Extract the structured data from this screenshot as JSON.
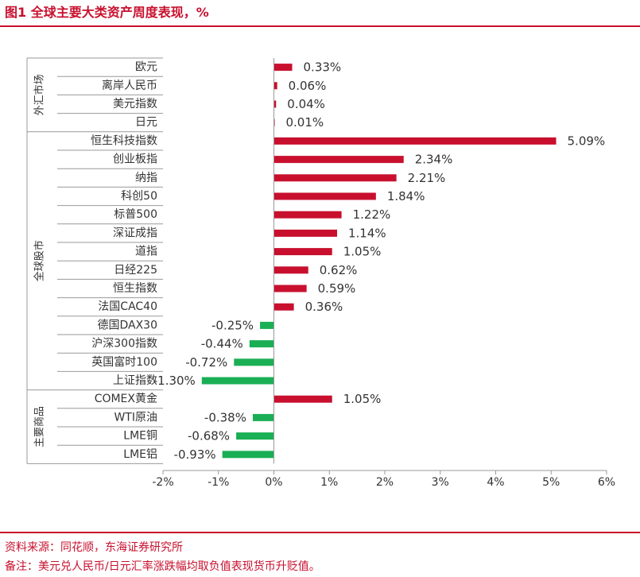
{
  "figure": {
    "title": "图1  全球主要大类资产周度表现，%",
    "source": "资料来源：同花顺，东海证券研究所",
    "note": "备注：美元兑人民币/日元汇率涨跌幅均取负值表现货币升贬值。"
  },
  "colors": {
    "positive": "#c8102e",
    "negative": "#1aaf54",
    "axis": "#999999",
    "text": "#333333",
    "accent": "#c8102e"
  },
  "chart_data": {
    "type": "bar",
    "orientation": "horizontal",
    "unit": "%",
    "groups": [
      {
        "name": "外汇市场",
        "categories": [
          "欧元",
          "离岸人民币",
          "美元指数",
          "日元"
        ]
      },
      {
        "name": "全球股市",
        "categories": [
          "恒生科技指数",
          "创业板指",
          "纳指",
          "科创50",
          "标普500",
          "深证成指",
          "道指",
          "日经225",
          "恒生指数",
          "法国CAC40",
          "德国DAX30",
          "沪深300指数",
          "英国富时100",
          "上证指数"
        ]
      },
      {
        "name": "主要商品",
        "categories": [
          "COMEX黄金",
          "WTI原油",
          "LME铜",
          "LME铝"
        ]
      }
    ],
    "categories": [
      "欧元",
      "离岸人民币",
      "美元指数",
      "日元",
      "恒生科技指数",
      "创业板指",
      "纳指",
      "科创50",
      "标普500",
      "深证成指",
      "道指",
      "日经225",
      "恒生指数",
      "法国CAC40",
      "德国DAX30",
      "沪深300指数",
      "英国富时100",
      "上证指数",
      "COMEX黄金",
      "WTI原油",
      "LME铜",
      "LME铝"
    ],
    "values": [
      0.33,
      0.06,
      0.04,
      0.01,
      5.09,
      2.34,
      2.21,
      1.84,
      1.22,
      1.14,
      1.05,
      0.62,
      0.59,
      0.36,
      -0.25,
      -0.44,
      -0.72,
      -1.3,
      1.05,
      -0.38,
      -0.68,
      -0.93
    ],
    "data_labels": [
      "0.33%",
      "0.06%",
      "0.04%",
      "0.01%",
      "5.09%",
      "2.34%",
      "2.21%",
      "1.84%",
      "1.22%",
      "1.14%",
      "1.05%",
      "0.62%",
      "0.59%",
      "0.36%",
      "-0.25%",
      "-0.44%",
      "-0.72%",
      "-1.30%",
      "1.05%",
      "-0.38%",
      "-0.68%",
      "-0.93%"
    ],
    "xlim": [
      -2,
      6
    ],
    "xticks": [
      -2,
      -1,
      0,
      1,
      2,
      3,
      4,
      5,
      6
    ],
    "xtick_labels": [
      "-2%",
      "-1%",
      "0%",
      "1%",
      "2%",
      "3%",
      "4%",
      "5%",
      "6%"
    ],
    "grid": false,
    "legend": "none"
  }
}
